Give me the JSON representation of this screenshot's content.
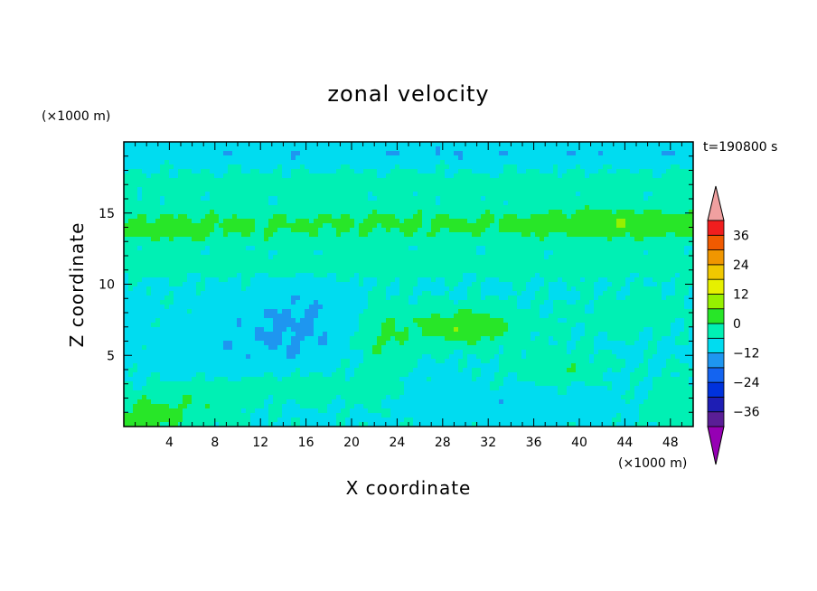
{
  "chart_data": {
    "type": "heatmap",
    "title": "zonal velocity",
    "xlabel": "X coordinate",
    "ylabel": "Z coordinate",
    "x_unit": "(×1000 m)",
    "y_unit": "(×1000 m)",
    "time_label": "t=190800 s",
    "xlim": [
      0,
      50
    ],
    "ylim": [
      0,
      20
    ],
    "x_ticks": [
      4,
      8,
      12,
      16,
      20,
      24,
      28,
      32,
      36,
      40,
      44,
      48
    ],
    "y_ticks": [
      5,
      10,
      15
    ],
    "colorbar": {
      "levels": [
        -42,
        -36,
        -30,
        -24,
        -18,
        -12,
        -6,
        0,
        6,
        12,
        18,
        24,
        30,
        36,
        42
      ],
      "labels": [
        -36,
        -24,
        -12,
        0,
        12,
        24,
        36
      ],
      "colors": [
        "#5a1e96",
        "#1e1eb4",
        "#0032dc",
        "#1464f0",
        "#1e96f0",
        "#00dcf0",
        "#00f0b4",
        "#28e628",
        "#96f000",
        "#e6f000",
        "#f0c800",
        "#f09600",
        "#f05a00",
        "#f01e1e"
      ],
      "under_color": "#9600b4",
      "over_color": "#f0a0a0"
    }
  }
}
